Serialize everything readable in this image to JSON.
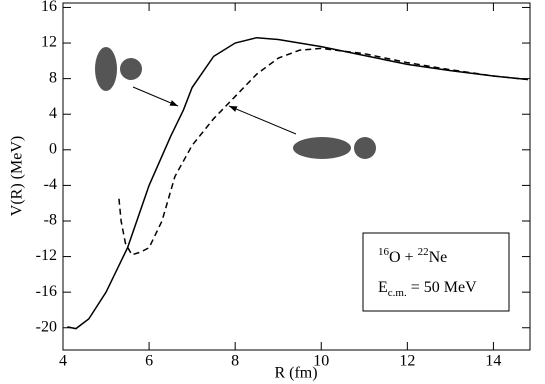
{
  "chart_data": {
    "type": "line",
    "x_label": "R (fm)",
    "y_label": "V(R) (MeV)",
    "xlim": [
      4,
      14.85
    ],
    "ylim": [
      -22.5,
      16.5
    ],
    "xticks": [
      4,
      6,
      8,
      10,
      12,
      14
    ],
    "yticks": [
      -20,
      -16,
      -12,
      -8,
      -4,
      0,
      4,
      8,
      12,
      16
    ],
    "series": [
      {
        "color": "#000000",
        "dashed": false,
        "x": [
          4.1,
          4.3,
          4.6,
          5,
          5.5,
          6,
          6.5,
          6.8,
          7,
          7.5,
          8,
          8.5,
          9,
          10,
          11,
          12,
          13,
          14,
          14.8
        ],
        "values": [
          -19.9,
          -20.1,
          -19,
          -16,
          -11,
          -4,
          1.5,
          4.5,
          7,
          10.5,
          12,
          12.6,
          12.4,
          11.6,
          10.6,
          9.6,
          8.9,
          8.3,
          7.9
        ]
      },
      {
        "color": "#000000",
        "dashed": true,
        "x": [
          5.3,
          5.35,
          5.45,
          5.6,
          5.8,
          6,
          6.3,
          6.6,
          7,
          7.5,
          8,
          8.5,
          9,
          9.5,
          10,
          11,
          12,
          13,
          14,
          14.8
        ],
        "values": [
          -5.5,
          -8,
          -10.5,
          -11.8,
          -11.5,
          -11,
          -8,
          -3,
          0.5,
          3.5,
          6,
          8.5,
          10.3,
          11.2,
          11.4,
          10.8,
          9.8,
          9,
          8.3,
          7.9
        ]
      }
    ],
    "annotation": {
      "mass1": "16",
      "nucleus1": "O + ",
      "mass2": "22",
      "nucleus2": "Ne",
      "energy_symbol": "E",
      "energy_subscript": "c.m.",
      "energy_value": " = 50 MeV"
    }
  }
}
